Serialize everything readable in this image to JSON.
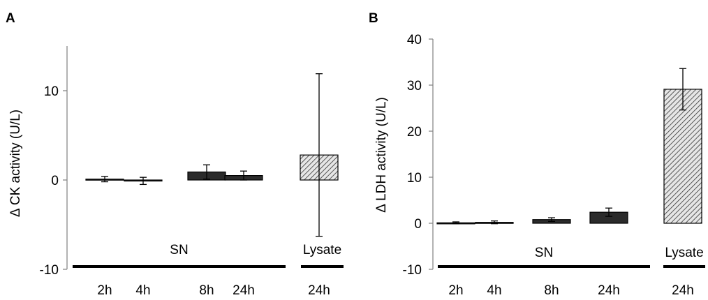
{
  "chart_data": [
    {
      "panel": "A",
      "type": "bar",
      "ylabel": "Δ CK activity (U/L)",
      "ylim": [
        -10,
        15
      ],
      "yticks": [
        -10,
        0,
        10
      ],
      "categories": [
        "2h",
        "4h",
        "8h",
        "24h",
        "24h"
      ],
      "values": [
        0.1,
        -0.1,
        0.9,
        0.5,
        2.8
      ],
      "errors": [
        0.3,
        0.4,
        0.8,
        0.5,
        9.1
      ],
      "fills": [
        "dark",
        "dark",
        "dark",
        "dark",
        "hatched"
      ],
      "groups": [
        {
          "label": "SN",
          "from": 0,
          "to": 3
        },
        {
          "label": "Lysate",
          "from": 4,
          "to": 4
        }
      ]
    },
    {
      "panel": "B",
      "type": "bar",
      "ylabel": "Δ LDH activity (U/L)",
      "ylim": [
        -10,
        40
      ],
      "yticks": [
        -10,
        0,
        10,
        20,
        30,
        40
      ],
      "categories": [
        "2h",
        "4h",
        "8h",
        "24h",
        "24h"
      ],
      "values": [
        0.1,
        0.2,
        0.8,
        2.4,
        29.1
      ],
      "errors": [
        0.2,
        0.3,
        0.4,
        0.9,
        4.5
      ],
      "fills": [
        "dark",
        "dark",
        "dark",
        "dark",
        "hatched"
      ],
      "groups": [
        {
          "label": "SN",
          "from": 0,
          "to": 3
        },
        {
          "label": "Lysate",
          "from": 4,
          "to": 4
        }
      ]
    }
  ],
  "colors": {
    "bar_dark": "#2b2b2b",
    "hatch_bg": "#e6e6e6",
    "hatch_line": "#333333",
    "axis": "#888888",
    "group_line": "#000000"
  }
}
